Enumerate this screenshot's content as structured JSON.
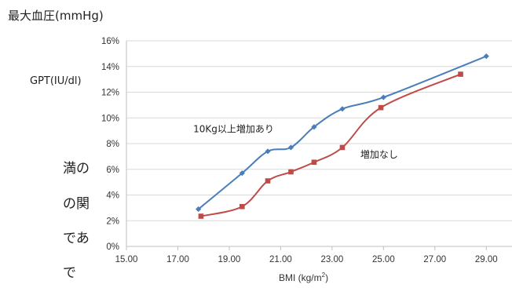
{
  "page": {
    "top_label": "最大血圧(mmHg)",
    "side_label": "GPT(IU/dl)",
    "side_text_fragments": [
      "満の",
      "の関",
      "であ",
      "で"
    ]
  },
  "chart_data": {
    "type": "line",
    "title": "",
    "xlabel_main": "BMI  (kg/m",
    "xlabel_sup": "2",
    "xlabel_tail": ")",
    "ylabel": "",
    "xlim": [
      15,
      30
    ],
    "ylim": [
      0,
      16
    ],
    "x_ticks": [
      15,
      17,
      19,
      21,
      23,
      25,
      27,
      29
    ],
    "x_tick_labels": [
      "15.00",
      "17.00",
      "19.00",
      "21.00",
      "23.00",
      "25.00",
      "27.00",
      "29.00"
    ],
    "y_ticks": [
      0,
      2,
      4,
      6,
      8,
      10,
      12,
      14,
      16
    ],
    "y_tick_labels": [
      "0%",
      "2%",
      "4%",
      "6%",
      "8%",
      "10%",
      "12%",
      "14%",
      "16%"
    ],
    "grid": "horizontal",
    "series": [
      {
        "label": "10Kg以上増加あり",
        "color": "#4a7ebb",
        "marker": "diamond",
        "label_pos": [
          17.6,
          8.9
        ],
        "x": [
          17.8,
          19.5,
          20.5,
          21.4,
          22.3,
          23.4,
          25.0,
          29.0
        ],
        "y": [
          2.9,
          5.7,
          7.4,
          7.7,
          9.3,
          10.7,
          11.6,
          14.8
        ]
      },
      {
        "label": "増加なし",
        "color": "#be4b48",
        "marker": "square",
        "label_pos": [
          24.1,
          6.9
        ],
        "x": [
          17.9,
          19.5,
          20.5,
          21.4,
          22.3,
          23.4,
          24.9,
          28.0
        ],
        "y": [
          2.35,
          3.1,
          5.1,
          5.8,
          6.55,
          7.7,
          10.8,
          13.4
        ]
      }
    ]
  }
}
